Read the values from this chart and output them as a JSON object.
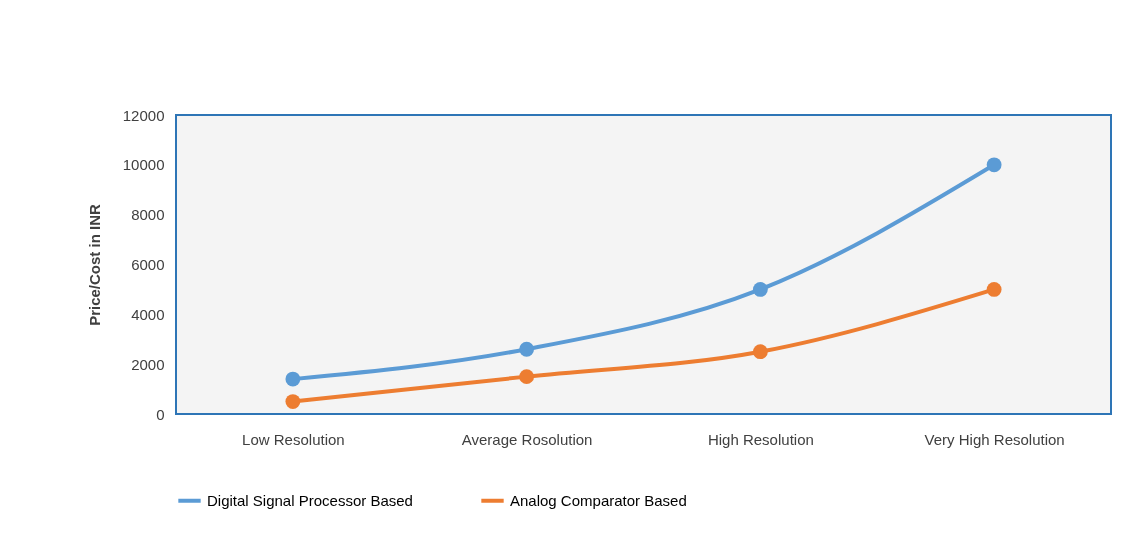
{
  "chart_data": {
    "type": "line",
    "ylabel": "Price/Cost in INR",
    "categories": [
      "Low Resolution",
      "Average Rosolution",
      "High Resolution",
      "Very High Resolution"
    ],
    "series": [
      {
        "name": "Digital Signal Processor Based",
        "color": "#5b9bd5",
        "values": [
          1400,
          2600,
          5000,
          10000
        ]
      },
      {
        "name": "Analog Comparator Based",
        "color": "#ed7d31",
        "values": [
          500,
          1500,
          2500,
          5000
        ]
      }
    ],
    "ylim": [
      0,
      12000
    ],
    "yticks": [
      0,
      2000,
      4000,
      6000,
      8000,
      10000,
      12000
    ],
    "grid": false,
    "legend": "bottom",
    "marker": "circle",
    "line_style": "solid"
  }
}
